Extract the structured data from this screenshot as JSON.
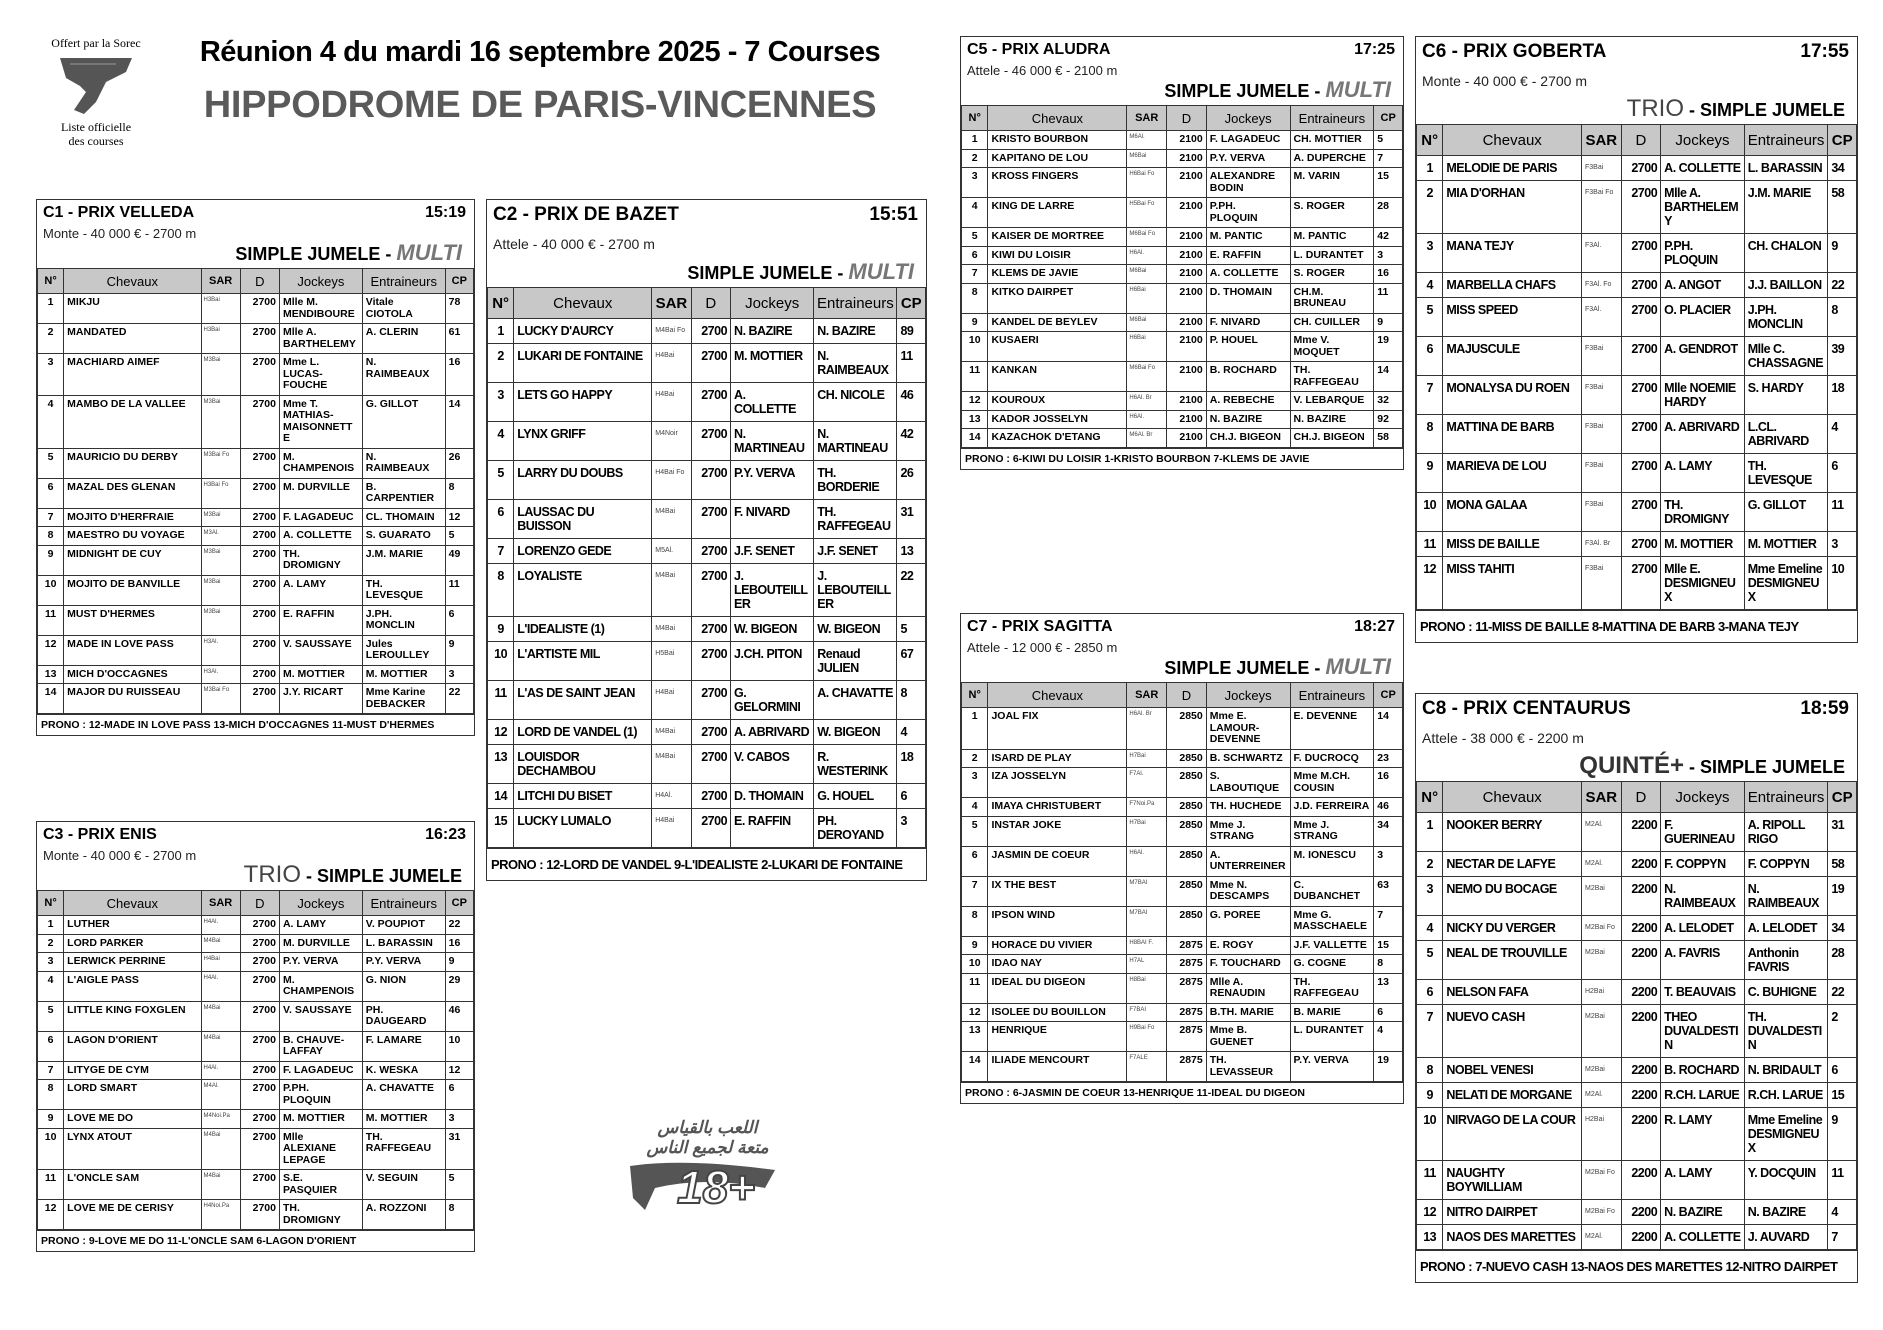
{
  "header": {
    "logo_top": "Offert par la Sorec",
    "logo_bottom_1": "Liste officielle",
    "logo_bottom_2": "des courses",
    "title": "Réunion 4 du mardi 16 septembre 2025 - 7 Courses",
    "venue": "HIPPODROME DE PARIS-VINCENNES"
  },
  "age_logo": {
    "line1": "اللعب بالقياس",
    "line2": "متعة لجميع الناس",
    "badge": "18+"
  },
  "columns": [
    "N°",
    "Chevaux",
    "SAR",
    "D",
    "Jockeys",
    "Entraineurs",
    "CP"
  ],
  "races": [
    {
      "name": "C1 -  PRIX VELLEDA",
      "time": "15:19",
      "conditions": "Monte - 40 000 € - 2700 m",
      "bets": [
        {
          "text": "SIMPLE JUMELE - ",
          "style": "bold"
        },
        {
          "text": "MULTI",
          "style": "italic-gray"
        }
      ],
      "rows": [
        [
          "1",
          "MIKJU",
          "H3Bai",
          "2700",
          "Mlle M. MENDIBOURE",
          "Vitale CIOTOLA",
          "78"
        ],
        [
          "2",
          "MANDATED",
          "H3Bai",
          "2700",
          "Mlle A. BARTHELEMY",
          "A. CLERIN",
          "61"
        ],
        [
          "3",
          "MACHIARD AIMEF",
          "M3Bai",
          "2700",
          "Mme L. LUCAS-FOUCHE",
          "N. RAIMBEAUX",
          "16"
        ],
        [
          "4",
          "MAMBO DE LA VALLEE",
          "M3Bai",
          "2700",
          "Mme T. MATHIAS-MAISONNETTE",
          "G. GILLOT",
          "14"
        ],
        [
          "5",
          "MAURICIO DU DERBY",
          "M3Bai Fo",
          "2700",
          "M. CHAMPENOIS",
          "N. RAIMBEAUX",
          "26"
        ],
        [
          "6",
          "MAZAL DES GLENAN",
          "H3Bai Fo",
          "2700",
          "M. DURVILLE",
          "B. CARPENTIER",
          "8"
        ],
        [
          "7",
          "MOJITO D'HERFRAIE",
          "M3Bai",
          "2700",
          "F. LAGADEUC",
          "CL. THOMAIN",
          "12"
        ],
        [
          "8",
          "MAESTRO DU VOYAGE",
          "M3Al.",
          "2700",
          "A. COLLETTE",
          "S. GUARATO",
          "5"
        ],
        [
          "9",
          "MIDNIGHT DE CUY",
          "M3Bai",
          "2700",
          "TH. DROMIGNY",
          "J.M. MARIE",
          "49"
        ],
        [
          "10",
          "MOJITO DE BANVILLE",
          "M3Bai",
          "2700",
          "A. LAMY",
          "TH. LEVESQUE",
          "11"
        ],
        [
          "11",
          "MUST D'HERMES",
          "M3Bai",
          "2700",
          "E. RAFFIN",
          "J.PH. MONCLIN",
          "6"
        ],
        [
          "12",
          "MADE IN LOVE PASS",
          "H3Al.",
          "2700",
          "V. SAUSSAYE",
          "Jules LEROULLEY",
          "9"
        ],
        [
          "13",
          "MICH D'OCCAGNES",
          "H3Al.",
          "2700",
          "M. MOTTIER",
          "M. MOTTIER",
          "3"
        ],
        [
          "14",
          "MAJOR DU RUISSEAU",
          "M3Bai Fo",
          "2700",
          "J.Y. RICART",
          "Mme Karine DEBACKER",
          "22"
        ]
      ],
      "prono": "PRONO : 12-MADE IN LOVE PASS 13-MICH D'OCCAGNES 11-MUST D'HERMES"
    },
    {
      "name": "C2 -  PRIX DE BAZET",
      "time": "15:51",
      "conditions": "Attele - 40 000 € - 2700 m",
      "bets": [
        {
          "text": "SIMPLE JUMELE - ",
          "style": "bold"
        },
        {
          "text": "MULTI",
          "style": "italic-gray"
        }
      ],
      "rows": [
        [
          "1",
          "LUCKY D'AURCY",
          "M4Bai Fo",
          "2700",
          "N. BAZIRE",
          "N. BAZIRE",
          "89"
        ],
        [
          "2",
          "LUKARI DE FONTAINE",
          "H4Bai",
          "2700",
          "M. MOTTIER",
          "N. RAIMBEAUX",
          "11"
        ],
        [
          "3",
          "LETS GO HAPPY",
          "H4Bai",
          "2700",
          "A. COLLETTE",
          "CH. NICOLE",
          "46"
        ],
        [
          "4",
          "LYNX GRIFF",
          "M4Noir",
          "2700",
          "N. MARTINEAU",
          "N. MARTINEAU",
          "42"
        ],
        [
          "5",
          "LARRY DU DOUBS",
          "H4Bai Fo",
          "2700",
          "P.Y. VERVA",
          "TH. BORDERIE",
          "26"
        ],
        [
          "6",
          "LAUSSAC DU BUISSON",
          "M4Bai",
          "2700",
          "F. NIVARD",
          "TH. RAFFEGEAU",
          "31"
        ],
        [
          "7",
          "LORENZO GEDE",
          "M5Al.",
          "2700",
          "J.F. SENET",
          "J.F. SENET",
          "13"
        ],
        [
          "8",
          "LOYALISTE",
          "M4Bai",
          "2700",
          "J. LEBOUTEILLER",
          "J. LEBOUTEILLER",
          "22"
        ],
        [
          "9",
          "L'IDEALISTE (1)",
          "M4Bai",
          "2700",
          "W. BIGEON",
          "W. BIGEON",
          "5"
        ],
        [
          "10",
          "L'ARTISTE MIL",
          "H5Bai",
          "2700",
          "J.CH. PITON",
          "Renaud JULIEN",
          "67"
        ],
        [
          "11",
          "L'AS DE SAINT JEAN",
          "H4Bai",
          "2700",
          "G. GELORMINI",
          "A. CHAVATTE",
          "8"
        ],
        [
          "12",
          "LORD DE VANDEL (1)",
          "M4Bai",
          "2700",
          "A. ABRIVARD",
          "W. BIGEON",
          "4"
        ],
        [
          "13",
          "LOUISDOR DECHAMBOU",
          "M4Bai",
          "2700",
          "V. CABOS",
          "R. WESTERINK",
          "18"
        ],
        [
          "14",
          "LITCHI DU BISET",
          "H4Al.",
          "2700",
          "D. THOMAIN",
          "G. HOUEL",
          "6"
        ],
        [
          "15",
          "LUCKY LUMALO",
          "H4Bai",
          "2700",
          "E. RAFFIN",
          "PH. DEROYAND",
          "3"
        ]
      ],
      "prono": "PRONO : 12-LORD DE VANDEL 9-L'IDEALISTE 2-LUKARI DE FONTAINE"
    },
    {
      "name": "C3 -  PRIX ENIS",
      "time": "16:23",
      "conditions": "Monte - 40 000 € - 2700 m",
      "bets": [
        {
          "text": "TRIO",
          "style": "big-gray"
        },
        {
          "text": " - SIMPLE JUMELE",
          "style": "bold"
        }
      ],
      "rows": [
        [
          "1",
          "LUTHER",
          "H4Al.",
          "2700",
          "A. LAMY",
          "V. POUPIOT",
          "22"
        ],
        [
          "2",
          "LORD PARKER",
          "M4Bai",
          "2700",
          "M. DURVILLE",
          "L. BARASSIN",
          "16"
        ],
        [
          "3",
          "LERWICK PERRINE",
          "H4Bai",
          "2700",
          "P.Y. VERVA",
          "P.Y. VERVA",
          "9"
        ],
        [
          "4",
          "L'AIGLE PASS",
          "H4Al.",
          "2700",
          "M. CHAMPENOIS",
          "G. NION",
          "29"
        ],
        [
          "5",
          "LITTLE KING FOXGLEN",
          "M4Bai",
          "2700",
          "V. SAUSSAYE",
          "PH. DAUGEARD",
          "46"
        ],
        [
          "6",
          "LAGON D'ORIENT",
          "M4Bai",
          "2700",
          "B. CHAUVE-LAFFAY",
          "F. LAMARE",
          "10"
        ],
        [
          "7",
          "LITYGE DE CYM",
          "H4Al.",
          "2700",
          "F. LAGADEUC",
          "K. WESKA",
          "12"
        ],
        [
          "8",
          "LORD SMART",
          "M4Al.",
          "2700",
          "P.PH. PLOQUIN",
          "A. CHAVATTE",
          "6"
        ],
        [
          "9",
          "LOVE ME DO",
          "M4Noi.Pa",
          "2700",
          "M. MOTTIER",
          "M. MOTTIER",
          "3"
        ],
        [
          "10",
          "LYNX ATOUT",
          "M4Bai",
          "2700",
          "Mlle ALEXIANE LEPAGE",
          "TH. RAFFEGEAU",
          "31"
        ],
        [
          "11",
          "L'ONCLE SAM",
          "M4Bai",
          "2700",
          "S.E. PASQUIER",
          "V. SEGUIN",
          "5"
        ],
        [
          "12",
          "LOVE ME DE CERISY",
          "H4Noi.Pa",
          "2700",
          "TH. DROMIGNY",
          "A. ROZZONI",
          "8"
        ]
      ],
      "prono": "PRONO : 9-LOVE ME DO 11-L'ONCLE SAM 6-LAGON D'ORIENT"
    },
    {
      "name": "C5 -  PRIX ALUDRA",
      "time": "17:25",
      "conditions": "Attele - 46 000 € - 2100 m",
      "bets": [
        {
          "text": "SIMPLE JUMELE - ",
          "style": "bold"
        },
        {
          "text": "MULTI",
          "style": "italic-gray"
        }
      ],
      "rows": [
        [
          "1",
          "KRISTO BOURBON",
          "M6Al.",
          "2100",
          "F. LAGADEUC",
          "CH. MOTTIER",
          "5"
        ],
        [
          "2",
          "KAPITANO DE LOU",
          "M6Bai",
          "2100",
          "P.Y. VERVA",
          "A. DUPERCHE",
          "7"
        ],
        [
          "3",
          "KROSS FINGERS",
          "H6Bai Fo",
          "2100",
          "ALEXANDRE BODIN",
          "M. VARIN",
          "15"
        ],
        [
          "4",
          "KING DE LARRE",
          "H5Bai Fo",
          "2100",
          "P.PH. PLOQUIN",
          "S. ROGER",
          "28"
        ],
        [
          "5",
          "KAISER DE MORTREE",
          "M6Bai Fo",
          "2100",
          "M. PANTIC",
          "M. PANTIC",
          "42"
        ],
        [
          "6",
          "KIWI DU LOISIR",
          "H6Al.",
          "2100",
          "E. RAFFIN",
          "L. DURANTET",
          "3"
        ],
        [
          "7",
          "KLEMS DE JAVIE",
          "M6Bai",
          "2100",
          "A. COLLETTE",
          "S. ROGER",
          "16"
        ],
        [
          "8",
          "KITKO DAIRPET",
          "H6Bai",
          "2100",
          "D. THOMAIN",
          "CH.M. BRUNEAU",
          "11"
        ],
        [
          "9",
          "KANDEL DE BEYLEV",
          "M6Bai",
          "2100",
          "F. NIVARD",
          "CH. CUILLER",
          "9"
        ],
        [
          "10",
          "KUSAERI",
          "H6Bai",
          "2100",
          "P. HOUEL",
          "Mme V. MOQUET",
          "19"
        ],
        [
          "11",
          "KANKAN",
          "M6Bai Fo",
          "2100",
          "B. ROCHARD",
          "TH. RAFFEGEAU",
          "14"
        ],
        [
          "12",
          "KOUROUX",
          "H6Al. Br",
          "2100",
          "A. REBECHE",
          "V. LEBARQUE",
          "32"
        ],
        [
          "13",
          "KADOR JOSSELYN",
          "H6Al.",
          "2100",
          "N. BAZIRE",
          "N. BAZIRE",
          "92"
        ],
        [
          "14",
          "KAZACHOK D'ETANG",
          "M6Al. Br",
          "2100",
          "CH.J. BIGEON",
          "CH.J. BIGEON",
          "58"
        ]
      ],
      "prono": "PRONO : 6-KIWI DU LOISIR 1-KRISTO BOURBON 7-KLEMS DE JAVIE"
    },
    {
      "name": "C6 -  PRIX GOBERTA",
      "time": "17:55",
      "conditions": "Monte - 40 000 € - 2700 m",
      "bets": [
        {
          "text": "TRIO",
          "style": "big-gray"
        },
        {
          "text": " - SIMPLE JUMELE",
          "style": "bold"
        }
      ],
      "rows": [
        [
          "1",
          "MELODIE DE PARIS",
          "F3Bai",
          "2700",
          "A. COLLETTE",
          "L. BARASSIN",
          "34"
        ],
        [
          "2",
          "MIA D'ORHAN",
          "F3Bai Fo",
          "2700",
          "Mlle A. BARTHELEMY",
          "J.M. MARIE",
          "58"
        ],
        [
          "3",
          "MANA TEJY",
          "F3Al.",
          "2700",
          "P.PH. PLOQUIN",
          "CH. CHALON",
          "9"
        ],
        [
          "4",
          "MARBELLA CHAFS",
          "F3Al. Fo",
          "2700",
          "A. ANGOT",
          "J.J. BAILLON",
          "22"
        ],
        [
          "5",
          "MISS SPEED",
          "F3Al.",
          "2700",
          "O. PLACIER",
          "J.PH. MONCLIN",
          "8"
        ],
        [
          "6",
          "MAJUSCULE",
          "F3Bai",
          "2700",
          "A. GENDROT",
          "Mlle C. CHASSAGNE",
          "39"
        ],
        [
          "7",
          "MONALYSA DU ROEN",
          "F3Bai",
          "2700",
          "Mlle NOEMIE HARDY",
          "S. HARDY",
          "18"
        ],
        [
          "8",
          "MATTINA DE BARB",
          "F3Bai",
          "2700",
          "A. ABRIVARD",
          "L.CL. ABRIVARD",
          "4"
        ],
        [
          "9",
          "MARIEVA DE LOU",
          "F3Bai",
          "2700",
          "A. LAMY",
          "TH. LEVESQUE",
          "6"
        ],
        [
          "10",
          "MONA GALAA",
          "F3Bai",
          "2700",
          "TH. DROMIGNY",
          "G. GILLOT",
          "11"
        ],
        [
          "11",
          "MISS DE BAILLE",
          "F3Al. Br",
          "2700",
          "M. MOTTIER",
          "M. MOTTIER",
          "3"
        ],
        [
          "12",
          "MISS TAHITI",
          "F3Bai",
          "2700",
          "Mlle E. DESMIGNEUX",
          "Mme Emeline DESMIGNEUX",
          "10"
        ]
      ],
      "prono": "PRONO : 11-MISS DE BAILLE 8-MATTINA DE BARB 3-MANA TEJY"
    },
    {
      "name": "C7 -  PRIX SAGITTA",
      "time": "18:27",
      "conditions": "Attele - 12 000 € - 2850 m",
      "bets": [
        {
          "text": "SIMPLE JUMELE - ",
          "style": "bold"
        },
        {
          "text": "MULTI",
          "style": "italic-gray"
        }
      ],
      "rows": [
        [
          "1",
          "JOAL FIX",
          "H6Al. Br",
          "2850",
          "Mme E. LAMOUR-DEVENNE",
          "E. DEVENNE",
          "14"
        ],
        [
          "2",
          "ISARD DE PLAY",
          "H7Bai",
          "2850",
          "B. SCHWARTZ",
          "F. DUCROCQ",
          "23"
        ],
        [
          "3",
          "IZA JOSSELYN",
          "F7Al.",
          "2850",
          "S. LABOUTIQUE",
          "Mme M.CH. COUSIN",
          "16"
        ],
        [
          "4",
          "IMAYA CHRISTUBERT",
          "F7Noi.Pa",
          "2850",
          "TH. HUCHEDE",
          "J.D. FERREIRA",
          "46"
        ],
        [
          "5",
          "INSTAR JOKE",
          "H7Bai",
          "2850",
          "Mme J. STRANG",
          "Mme J. STRANG",
          "34"
        ],
        [
          "6",
          "JASMIN DE COEUR",
          "H6Al.",
          "2850",
          "A. UNTERREINER",
          "M. IONESCU",
          "3"
        ],
        [
          "7",
          "IX THE BEST",
          "M7BAI",
          "2850",
          "Mme N. DESCAMPS",
          "C. DUBANCHET",
          "63"
        ],
        [
          "8",
          "IPSON WIND",
          "M7BAI",
          "2850",
          "G. POREE",
          "Mme G. MASSCHAELE",
          "7"
        ],
        [
          "9",
          "HORACE DU VIVIER",
          "H8BAI F.",
          "2875",
          "E. ROGY",
          "J.F. VALLETTE",
          "15"
        ],
        [
          "10",
          "IDAO NAY",
          "H7AL",
          "2875",
          "F. TOUCHARD",
          "G. COGNE",
          "8"
        ],
        [
          "11",
          "IDEAL DU DIGEON",
          "H8Bai",
          "2875",
          "Mlle A. RENAUDIN",
          "TH. RAFFEGEAU",
          "13"
        ],
        [
          "12",
          "ISOLEE DU BOUILLON",
          "F7BAI",
          "2875",
          "B.TH. MARIE",
          "B. MARIE",
          "6"
        ],
        [
          "13",
          "HENRIQUE",
          "H9Bai Fo",
          "2875",
          "Mme B. GUENET",
          "L. DURANTET",
          "4"
        ],
        [
          "14",
          "ILIADE MENCOURT",
          "F7ALE",
          "2875",
          "TH. LEVASSEUR",
          "P.Y. VERVA",
          "19"
        ]
      ],
      "prono": "PRONO : 6-JASMIN DE COEUR 13-HENRIQUE 11-IDEAL DU DIGEON"
    },
    {
      "name": "C8 -  PRIX CENTAURUS",
      "time": "18:59",
      "conditions": "Attele - 38 000 € - 2200 m",
      "bets": [
        {
          "text": "QUINTÉ+",
          "style": "big-gray-bold"
        },
        {
          "text": " - SIMPLE JUMELE",
          "style": "bold"
        }
      ],
      "rows": [
        [
          "1",
          "NOOKER BERRY",
          "M2Al.",
          "2200",
          "F. GUERINEAU",
          "A. RIPOLL RIGO",
          "31"
        ],
        [
          "2",
          "NECTAR DE LAFYE",
          "M2Al.",
          "2200",
          "F. COPPYN",
          "F. COPPYN",
          "58"
        ],
        [
          "3",
          "NEMO DU BOCAGE",
          "M2Bai",
          "2200",
          "N. RAIMBEAUX",
          "N. RAIMBEAUX",
          "19"
        ],
        [
          "4",
          "NICKY DU VERGER",
          "M2Bai Fo",
          "2200",
          "A. LELODET",
          "A. LELODET",
          "34"
        ],
        [
          "5",
          "NEAL DE TROUVILLE",
          "M2Bai",
          "2200",
          "A. FAVRIS",
          "Anthonin FAVRIS",
          "28"
        ],
        [
          "6",
          "NELSON FAFA",
          "H2Bai",
          "2200",
          "T. BEAUVAIS",
          "C. BUHIGNE",
          "22"
        ],
        [
          "7",
          "NUEVO CASH",
          "M2Bai",
          "2200",
          "THEO DUVALDESTIN",
          "TH. DUVALDESTIN",
          "2"
        ],
        [
          "8",
          "NOBEL VENESI",
          "M2Bai",
          "2200",
          "B. ROCHARD",
          "N. BRIDAULT",
          "6"
        ],
        [
          "9",
          "NELATI DE MORGANE",
          "M2Al.",
          "2200",
          "R.CH. LARUE",
          "R.CH. LARUE",
          "15"
        ],
        [
          "10",
          "NIRVAGO DE LA COUR",
          "H2Bai",
          "2200",
          "R. LAMY",
          "Mme Emeline DESMIGNEUX",
          "9"
        ],
        [
          "11",
          "NAUGHTY BOYWILLIAM",
          "M2Bai Fo",
          "2200",
          "A. LAMY",
          "Y. DOCQUIN",
          "11"
        ],
        [
          "12",
          "NITRO DAIRPET",
          "M2Bai Fo",
          "2200",
          "N. BAZIRE",
          "N. BAZIRE",
          "4"
        ],
        [
          "13",
          "NAOS DES MARETTES",
          "M2Al.",
          "2200",
          "A. COLLETTE",
          "J. AUVARD",
          "7"
        ]
      ],
      "prono": "PRONO : 7-NUEVO CASH 13-NAOS DES MARETTES 12-NITRO DAIRPET"
    }
  ]
}
